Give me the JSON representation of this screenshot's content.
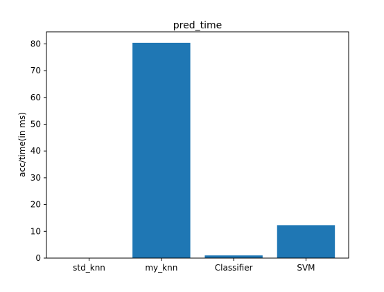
{
  "chart_data": {
    "type": "bar",
    "title": "pred_time",
    "xlabel": "",
    "ylabel": "acc/time(in ms)",
    "categories": [
      "std_knn",
      "my_knn",
      "Classifier",
      "SVM"
    ],
    "values": [
      0.1,
      80.4,
      1.0,
      12.3
    ],
    "ylim": [
      0,
      84.5
    ],
    "yticks": [
      0,
      10,
      20,
      30,
      40,
      50,
      60,
      70,
      80
    ],
    "grid": false,
    "legend": "none",
    "bar_color": "#1f77b4"
  }
}
